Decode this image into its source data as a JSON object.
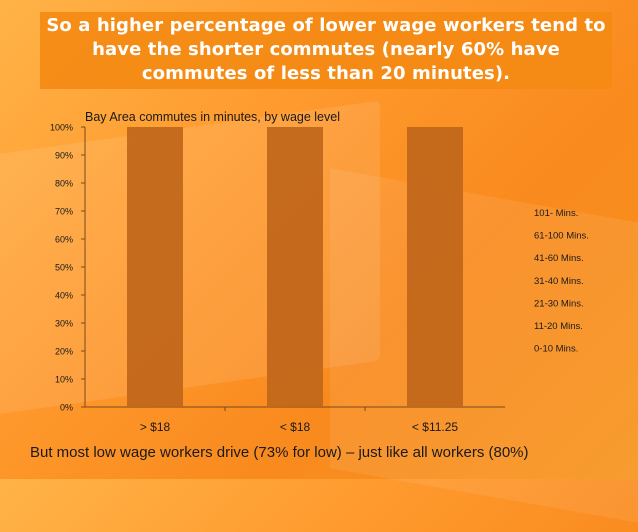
{
  "slide": {
    "title_lines": [
      "So a higher percentage of lower wage workers tend to",
      "have the shorter commutes (nearly 60% have",
      "commutes of less than 20 minutes)."
    ],
    "caption": "But most low wage workers drive (73% for low) – just like all workers (80%)"
  },
  "chart_data": {
    "type": "bar",
    "stacked": true,
    "title": "Bay Area commutes in minutes, by wage level",
    "categories": [
      "> $18",
      "< $18",
      "< $11.25"
    ],
    "y_ticks": [
      "0%",
      "10%",
      "20%",
      "30%",
      "40%",
      "50%",
      "60%",
      "70%",
      "80%",
      "90%",
      "100%"
    ],
    "ylim": [
      0,
      100
    ],
    "grid": false,
    "legend_position": "right",
    "legend": [
      "101- Mins.",
      "61-100 Mins.",
      "41-60 Mins.",
      "31-40 Mins.",
      "21-30 Mins.",
      "11-20 Mins.",
      "0-10 Mins."
    ],
    "bar_color": "#c0661a",
    "bar_totals": [
      100,
      100,
      100
    ]
  }
}
